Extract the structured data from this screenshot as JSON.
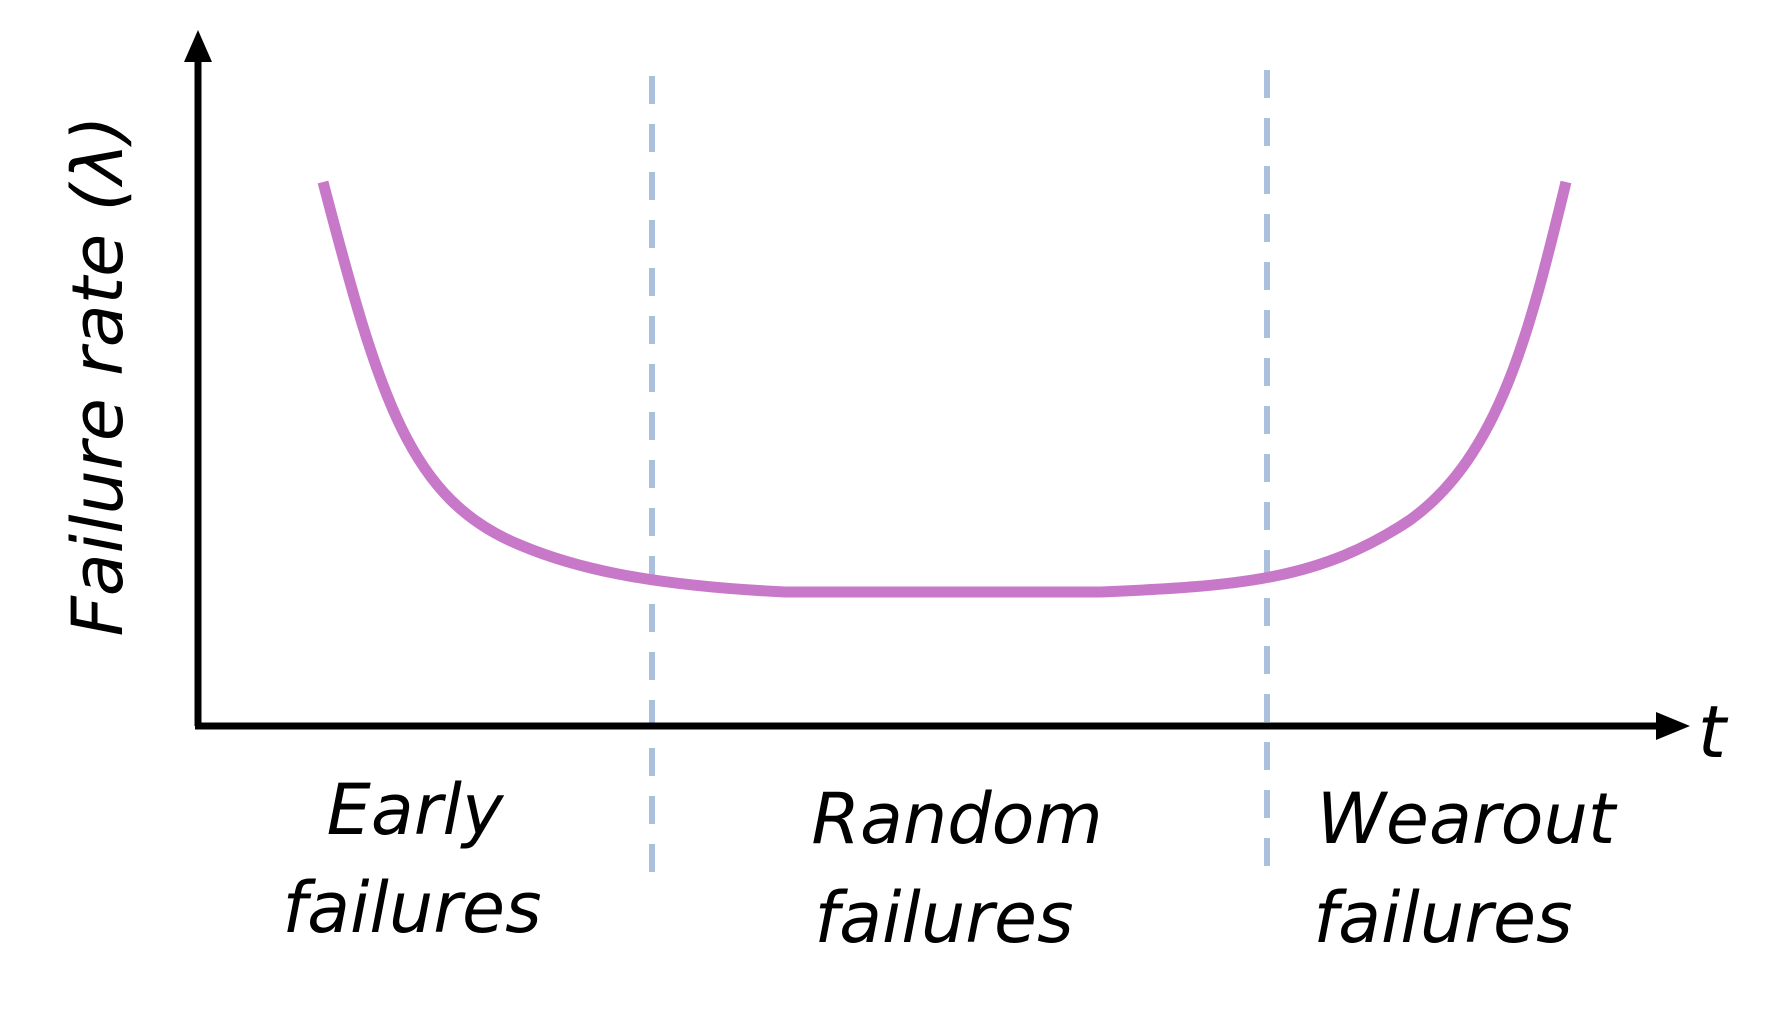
{
  "diagram": {
    "y_axis_label": "Failure rate (λ)",
    "x_axis_label": "t",
    "regions": [
      {
        "line1": "Early",
        "line2": "failures"
      },
      {
        "line1": "Random",
        "line2": "failures"
      },
      {
        "line1": "Wearout",
        "line2": "failures"
      }
    ],
    "colors": {
      "curve": "#c878c8",
      "divider": "#aac0dc",
      "axis": "#000000",
      "text": "#000000"
    }
  }
}
